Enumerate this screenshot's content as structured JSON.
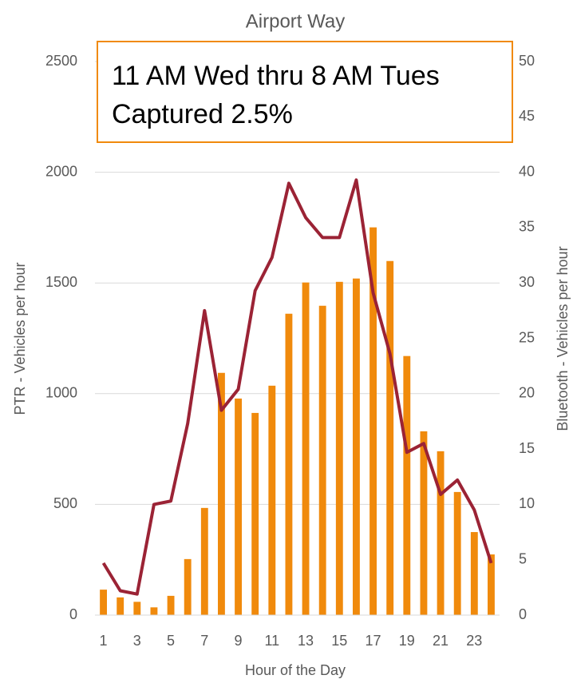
{
  "chart_data": {
    "type": "bar-line",
    "title": "Airport Way",
    "annotation": [
      "11 AM Wed thru 8 AM Tues",
      "Captured 2.5%"
    ],
    "xlabel": "Hour of the Day",
    "ylabel": "PTR - Vehicles per hour",
    "y2label": "Bluetooth - Vehicles per hour",
    "categories": [
      "1",
      null,
      "3",
      null,
      "5",
      null,
      "7",
      null,
      "9",
      null,
      "11",
      null,
      "13",
      null,
      "15",
      null,
      "17",
      null,
      "19",
      null,
      "21",
      null,
      "23",
      null
    ],
    "series": [
      {
        "name": "PTR",
        "type": "bar",
        "color": "#f08a0c",
        "values": [
          115,
          80,
          60,
          35,
          87,
          253,
          484,
          1094,
          978,
          913,
          1036,
          1361,
          1502,
          1397,
          1505,
          1520,
          1751,
          1599,
          1170,
          830,
          740,
          556,
          375,
          274
        ]
      },
      {
        "name": "Bluetooth",
        "type": "line",
        "axis": "y2",
        "color": "#9b2335",
        "values": [
          4.7,
          2.2,
          1.9,
          10,
          10.3,
          17.3,
          27.5,
          18.5,
          20.4,
          29.3,
          32.3,
          39,
          35.9,
          34.1,
          34.1,
          39.3,
          29.1,
          23.6,
          14.7,
          15.5,
          10.9,
          12.2,
          9.5,
          4.7
        ]
      }
    ],
    "ylim": [
      0,
      2500
    ],
    "yticks": [
      0,
      500,
      1000,
      1500,
      2000,
      2500
    ],
    "y2lim": [
      0,
      50
    ],
    "y2ticks": [
      0,
      5,
      10,
      15,
      20,
      25,
      30,
      35,
      40,
      45,
      50
    ],
    "grid": true
  }
}
